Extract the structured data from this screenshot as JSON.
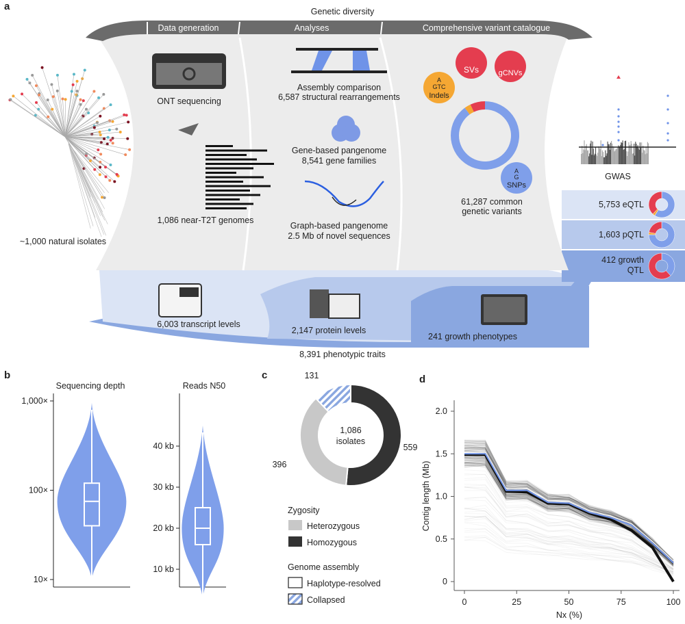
{
  "panel_letters": {
    "a": "a",
    "b": "b",
    "c": "c",
    "d": "d"
  },
  "panel_a": {
    "title": "Genetic diversity",
    "sections": [
      "Data generation",
      "Analyses",
      "Comprehensive variant catalogue"
    ],
    "isolates": "~1,000 natural isolates",
    "ont": "ONT sequencing",
    "genomes": "1,086 near-T2T genomes",
    "assembly_comparison": [
      "Assembly comparison",
      "6,587 structural rearrangements"
    ],
    "gene_pangenome": [
      "Gene-based pangenome",
      "8,541 gene families"
    ],
    "graph_pangenome": [
      "Graph-based pangenome",
      "2.5 Mb of novel sequences"
    ],
    "variant_badges": {
      "svs": "SVs",
      "gcnvs": "gCNVs",
      "indels": "Indels",
      "indels_seq": [
        "A",
        "GTC"
      ],
      "snps": "SNPs",
      "snps_seq": [
        "A",
        "G"
      ]
    },
    "variants": [
      "61,287 common",
      "genetic variants"
    ],
    "gwas": "GWAS",
    "qtl": [
      {
        "label": "5,753 eQTL",
        "fractions": {
          "red": 0.38,
          "orange": 0.03,
          "blue": 0.59
        }
      },
      {
        "label": "1,603 pQTL",
        "fractions": {
          "red": 0.22,
          "orange": 0.03,
          "blue": 0.75
        }
      },
      {
        "label": [
          "412 growth",
          "QTL"
        ],
        "fractions": {
          "red": 0.62,
          "orange": 0.0,
          "blue": 0.38
        }
      }
    ],
    "variant_donut": {
      "snps": 0.9,
      "indels": 0.03,
      "svs": 0.07
    },
    "traits": {
      "transcript": "6,003 transcript levels",
      "protein": "2,147 protein levels",
      "growth": "241 growth phenotypes",
      "total": "8,391 phenotypic traits"
    },
    "colors": {
      "snp": "#7f9fea",
      "indel": "#f5a733",
      "sv": "#e43d4f",
      "header": "#6b6b6b",
      "region": "#ececec",
      "band1": "#dbe4f5",
      "band2": "#b7c9ec",
      "band3": "#8aa7e0"
    }
  },
  "chart_data": [
    {
      "type": "violin",
      "panel": "b",
      "title": "Sequencing depth",
      "yscale": "log",
      "ylim": [
        10,
        1000
      ],
      "yticks": [
        "1,000×",
        "100×",
        "10×"
      ],
      "ytick_values": [
        1000,
        100,
        10
      ],
      "min": 10,
      "q1": 40,
      "median": 75,
      "q3": 120,
      "max": 950,
      "color": "#7f9fea"
    },
    {
      "type": "violin",
      "panel": "b",
      "title": "Reads N50",
      "yscale": "linear",
      "yticks": [
        "40 kb",
        "30 kb",
        "20 kb",
        "10 kb"
      ],
      "ytick_values": [
        40,
        30,
        20,
        10
      ],
      "min": 3,
      "q1": 16,
      "median": 20,
      "q3": 25,
      "max": 45,
      "color": "#7f9fea"
    },
    {
      "type": "pie",
      "panel": "c",
      "center_label": [
        "1,086",
        "isolates"
      ],
      "slices": [
        {
          "label": "559",
          "category": "Homozygous",
          "assembly": "Haplotype-resolved",
          "value": 559,
          "color": "#333333"
        },
        {
          "label": "396",
          "category": "Heterozygous",
          "assembly": "Haplotype-resolved",
          "value": 396,
          "color": "#c8c8c8"
        },
        {
          "label": "131",
          "category": "Collapsed",
          "assembly": "Collapsed",
          "value": 131,
          "color": "#8aa7e0"
        }
      ],
      "legend": {
        "zygosity_title": "Zygosity",
        "zygosity": [
          "Heterozygous",
          "Homozygous"
        ],
        "assembly_title": "Genome assembly",
        "assembly": [
          "Haplotype-resolved",
          "Collapsed"
        ]
      }
    },
    {
      "type": "line",
      "panel": "d",
      "xlabel": "Nx (%)",
      "ylabel": "Contig length (Mb)",
      "xlim": [
        0,
        100
      ],
      "ylim": [
        0,
        2.0
      ],
      "xticks": [
        "0",
        "25",
        "50",
        "75",
        "100"
      ],
      "xtick_values": [
        0,
        25,
        50,
        75,
        100
      ],
      "yticks": [
        "0",
        "0.5",
        "1.0",
        "1.5",
        "2.0"
      ],
      "ytick_values": [
        0,
        0.5,
        1.0,
        1.5,
        2.0
      ],
      "x": [
        0,
        10,
        20,
        30,
        40,
        50,
        60,
        70,
        80,
        90,
        100
      ],
      "series": [
        {
          "values": [
            1.5,
            1.5,
            1.07,
            1.07,
            0.93,
            0.92,
            0.81,
            0.75,
            0.66,
            0.45,
            0.22
          ],
          "color": "#6f93e8"
        },
        {
          "values": [
            1.49,
            1.49,
            1.06,
            1.05,
            0.92,
            0.91,
            0.8,
            0.73,
            0.6,
            0.4,
            0.0
          ],
          "color": "#111111"
        }
      ]
    }
  ]
}
